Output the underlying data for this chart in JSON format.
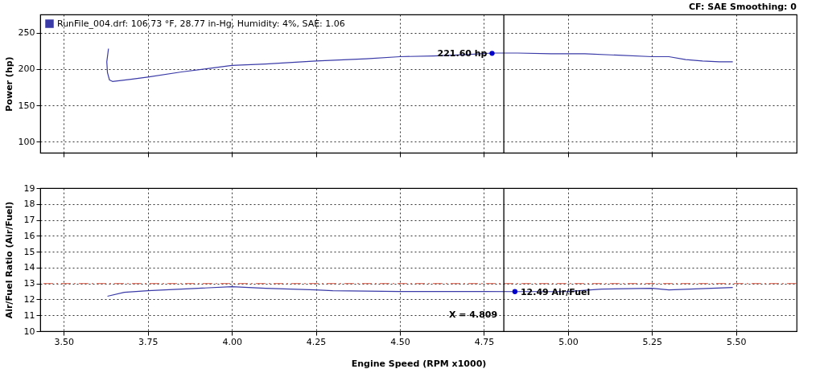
{
  "chart_data": [
    {
      "type": "line",
      "subtitle": "CF: SAE  Smoothing: 0",
      "ylabel": "Power (hp)",
      "xlim": [
        3.43,
        5.68
      ],
      "ylim": [
        85,
        275
      ],
      "xticks": [
        {
          "value": 3.5,
          "label": null
        },
        {
          "value": 3.75,
          "label": null
        },
        {
          "value": 4.0,
          "label": null
        },
        {
          "value": 4.25,
          "label": null
        },
        {
          "value": 4.5,
          "label": null
        },
        {
          "value": 4.75,
          "label": null
        },
        {
          "value": 5.0,
          "label": null
        },
        {
          "value": 5.25,
          "label": null
        },
        {
          "value": 5.5,
          "label": null
        }
      ],
      "yticks": [
        100,
        150,
        200,
        250
      ],
      "tick_labels": "y",
      "grid": true,
      "legend": "top left",
      "series": [
        {
          "name": "RunFile_004.drf: 106.73 °F, 28.77 in-Hg, Humidity: 4%, SAE: 1.06",
          "color": "#3a3aa8",
          "x": [
            3.633,
            3.628,
            3.63,
            3.636,
            3.645,
            3.7,
            3.75,
            3.85,
            4.0,
            4.1,
            4.25,
            4.4,
            4.5,
            4.6,
            4.7,
            4.774,
            4.85,
            4.95,
            5.05,
            5.15,
            5.25,
            5.3,
            5.35,
            5.4,
            5.45,
            5.49
          ],
          "values": [
            228,
            210,
            195,
            185,
            183,
            186,
            189,
            196,
            205,
            207,
            211,
            214,
            217,
            218,
            220,
            222,
            222,
            221,
            221,
            219,
            217,
            217,
            213,
            211,
            210,
            210
          ]
        }
      ],
      "ref_lines": [
        {
          "axis": "x",
          "value": 4.809,
          "color": "#000000",
          "line_style": "solid"
        }
      ],
      "annotations": [
        {
          "text": "221.60 hp",
          "x": 4.774,
          "y": 221.6
        }
      ]
    },
    {
      "type": "line",
      "xlabel": "Engine Speed (RPM x1000)",
      "ylabel": "Air/Fuel Ratio (Air/Fuel)",
      "xlim": [
        3.43,
        5.68
      ],
      "ylim": [
        10,
        19
      ],
      "xticks": [
        {
          "value": 3.5,
          "label": "3.50"
        },
        {
          "value": 3.75,
          "label": "3.75"
        },
        {
          "value": 4.0,
          "label": "4.00"
        },
        {
          "value": 4.25,
          "label": "4.25"
        },
        {
          "value": 4.5,
          "label": "4.50"
        },
        {
          "value": 4.75,
          "label": "4.75"
        },
        {
          "value": 5.0,
          "label": "5.00"
        },
        {
          "value": 5.25,
          "label": "5.25"
        },
        {
          "value": 5.5,
          "label": "5.50"
        }
      ],
      "yticks": [
        10,
        11,
        12,
        13,
        14,
        15,
        16,
        17,
        18,
        19
      ],
      "grid": true,
      "series": [
        {
          "color": "#3a3aa8",
          "x": [
            3.63,
            3.68,
            3.75,
            3.9,
            4.0,
            4.1,
            4.25,
            4.3,
            4.5,
            4.75,
            4.842,
            5.0,
            5.1,
            5.25,
            5.3,
            5.49
          ],
          "values": [
            12.2,
            12.45,
            12.55,
            12.7,
            12.8,
            12.7,
            12.6,
            12.55,
            12.5,
            12.5,
            12.49,
            12.5,
            12.65,
            12.7,
            12.6,
            12.75
          ]
        }
      ],
      "ref_lines": [
        {
          "axis": "y",
          "value": 13,
          "color": "#e07a6a",
          "line_style": "dashed"
        },
        {
          "axis": "x",
          "value": 4.809,
          "label": "X = 4.809",
          "color": "#000000",
          "line_style": "solid"
        }
      ],
      "annotations": [
        {
          "text": "12.49 Air/Fuel",
          "x": 4.842,
          "y": 12.49
        }
      ]
    }
  ]
}
